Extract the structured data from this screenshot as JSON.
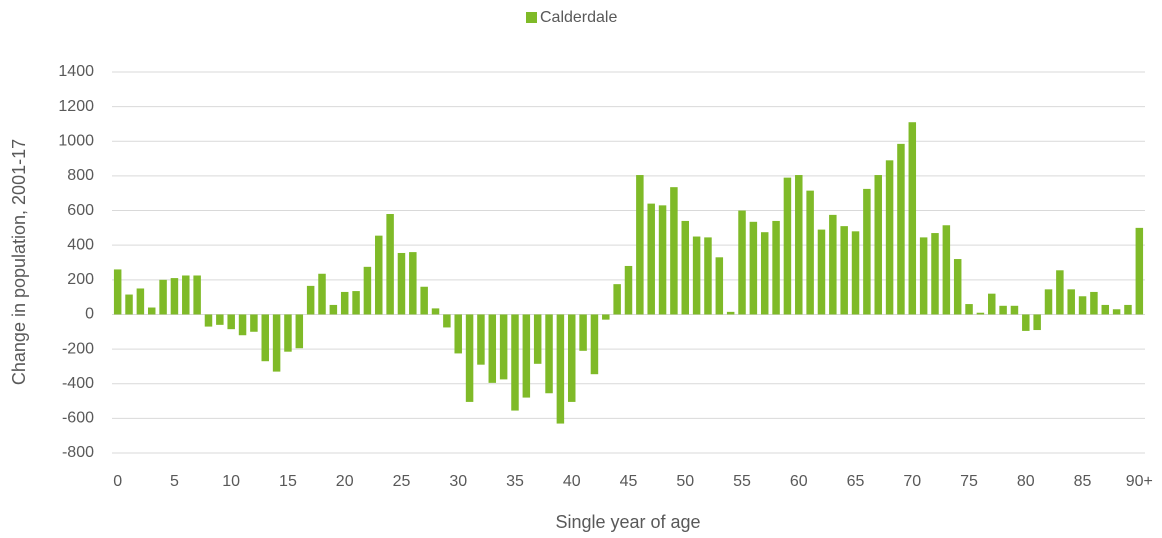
{
  "chart_data": {
    "type": "bar",
    "y_label": "Change in population, 2001-17",
    "x_label": "Single year of age",
    "legend_position": "top",
    "series": [
      {
        "name": "Calderdale",
        "color": "#7fba28",
        "values": [
          260,
          115,
          150,
          40,
          200,
          210,
          225,
          225,
          -70,
          -60,
          -85,
          -120,
          -100,
          -270,
          -330,
          -215,
          -195,
          165,
          235,
          55,
          130,
          135,
          275,
          455,
          580,
          355,
          360,
          160,
          35,
          -75,
          -225,
          -505,
          -290,
          -395,
          -375,
          -555,
          -480,
          -285,
          -455,
          -630,
          -505,
          -210,
          -345,
          -30,
          175,
          280,
          805,
          640,
          630,
          735,
          540,
          450,
          445,
          330,
          15,
          600,
          535,
          475,
          540,
          790,
          805,
          715,
          490,
          575,
          510,
          480,
          725,
          805,
          890,
          985,
          1110,
          445,
          470,
          515,
          320,
          60,
          10,
          120,
          50,
          50,
          -95,
          -90,
          145,
          255,
          145,
          105,
          130,
          55,
          30,
          55,
          500
        ]
      }
    ],
    "categories": [
      "0",
      null,
      null,
      null,
      null,
      "5",
      null,
      null,
      null,
      null,
      "10",
      null,
      null,
      null,
      null,
      "15",
      null,
      null,
      null,
      null,
      "20",
      null,
      null,
      null,
      null,
      "25",
      null,
      null,
      null,
      null,
      "30",
      null,
      null,
      null,
      null,
      "35",
      null,
      null,
      null,
      null,
      "40",
      null,
      null,
      null,
      null,
      "45",
      null,
      null,
      null,
      null,
      "50",
      null,
      null,
      null,
      null,
      "55",
      null,
      null,
      null,
      null,
      "60",
      null,
      null,
      null,
      null,
      "65",
      null,
      null,
      null,
      null,
      "70",
      null,
      null,
      null,
      null,
      "75",
      null,
      null,
      null,
      null,
      "80",
      null,
      null,
      null,
      null,
      "85",
      null,
      null,
      null,
      null,
      "90+"
    ],
    "ylim": [
      -800,
      1400
    ],
    "yticks": [
      -800,
      -600,
      -400,
      -200,
      0,
      200,
      400,
      600,
      800,
      1000,
      1200,
      1400
    ],
    "grid": true
  }
}
